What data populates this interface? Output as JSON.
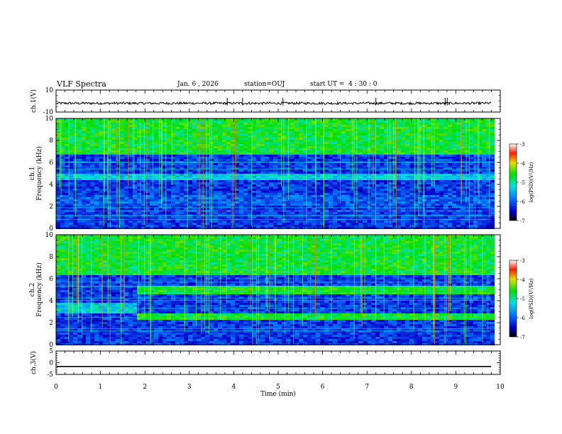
{
  "header": {
    "title": "VLF Spectra",
    "date": "Jan. 6 , 2026",
    "station": "station=OUJ",
    "start": "start UT =  4 : 30 : 0"
  },
  "chart_data": [
    {
      "type": "line",
      "name": "ch1-waveform",
      "ylabel": "ch.1(V)",
      "ylim": [
        -10,
        10
      ],
      "ytick_labels": [
        "10",
        "-10"
      ],
      "baseline": -2,
      "xlim": [
        0,
        10
      ]
    },
    {
      "type": "heatmap",
      "name": "ch1-spectrogram",
      "ylabel": "ch.1\nFrequency (kHz)",
      "xlim": [
        0,
        10
      ],
      "ylim": [
        0,
        10
      ],
      "ytick_labels": [
        "0",
        "2",
        "4",
        "6",
        "8",
        "10"
      ],
      "data_end_min": 9.8,
      "bands_khz": [
        {
          "from": 0.3,
          "to": 1.6,
          "level": "very low"
        },
        {
          "from": 2.2,
          "to": 3.2,
          "level": "low"
        },
        {
          "from": 3.8,
          "to": 4.4,
          "level": "very low"
        },
        {
          "from": 4.5,
          "to": 5.0,
          "level": "medium"
        },
        {
          "from": 6.8,
          "to": 10.0,
          "level": "high"
        }
      ],
      "colorbar": {
        "label": "log(PSD)(V²/Hz)",
        "range": [
          -7,
          -3
        ],
        "ticks": [
          "-3",
          "-4",
          "-5",
          "-6",
          "-7"
        ]
      }
    },
    {
      "type": "heatmap",
      "name": "ch2-spectrogram",
      "ylabel": "ch.2\nFrequency (kHz)",
      "xlim": [
        0,
        10
      ],
      "ylim": [
        0,
        10
      ],
      "ytick_labels": [
        "0",
        "2",
        "4",
        "6",
        "8",
        "10"
      ],
      "data_end_min": 9.8,
      "bands_khz": [
        {
          "from": 2.4,
          "to": 3.0,
          "level": "high",
          "start_min": 1.8
        },
        {
          "from": 4.6,
          "to": 5.4,
          "level": "high",
          "start_min": 1.8
        },
        {
          "from": 3.0,
          "to": 3.9,
          "level": "medium",
          "end_min": 1.8
        },
        {
          "from": 6.5,
          "to": 10.0,
          "level": "high"
        }
      ],
      "colorbar": {
        "label": "log(PSD)(V²/Hz)",
        "range": [
          -7,
          -3
        ],
        "ticks": [
          "-3",
          "-4",
          "-5",
          "-6",
          "-7"
        ]
      }
    },
    {
      "type": "line",
      "name": "ch3-waveform",
      "ylabel": "ch.3(V)",
      "ylim": [
        -5,
        5
      ],
      "ytick_labels": [
        "5",
        "0",
        "-5"
      ],
      "baseline": -1.6,
      "xlim": [
        0,
        10
      ]
    }
  ],
  "xaxis": {
    "label": "Time (min)",
    "ticks": [
      "0",
      "1",
      "2",
      "3",
      "4",
      "5",
      "6",
      "7",
      "8",
      "9",
      "10"
    ]
  }
}
